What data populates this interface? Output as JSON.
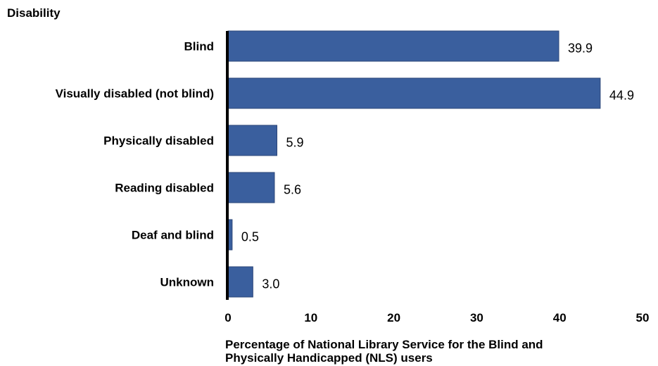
{
  "chart_data": {
    "type": "bar",
    "orientation": "horizontal",
    "ylabel": "Disability",
    "xlabel_lines": [
      "Percentage of National Library Service for the Blind and",
      "Physically Handicapped (NLS) users"
    ],
    "categories": [
      "Blind",
      "Visually disabled (not blind)",
      "Physically disabled",
      "Reading disabled",
      "Deaf and blind",
      "Unknown"
    ],
    "values": [
      39.9,
      44.9,
      5.9,
      5.6,
      0.5,
      3.0
    ],
    "value_labels": [
      "39.9",
      "44.9",
      "5.9",
      "5.6",
      "0.5",
      "3.0"
    ],
    "xlim": [
      0,
      50
    ],
    "xticks": [
      0,
      10,
      20,
      30,
      40,
      50
    ],
    "grid": false,
    "legend": "none",
    "bar_color": "#3a5f9e"
  }
}
